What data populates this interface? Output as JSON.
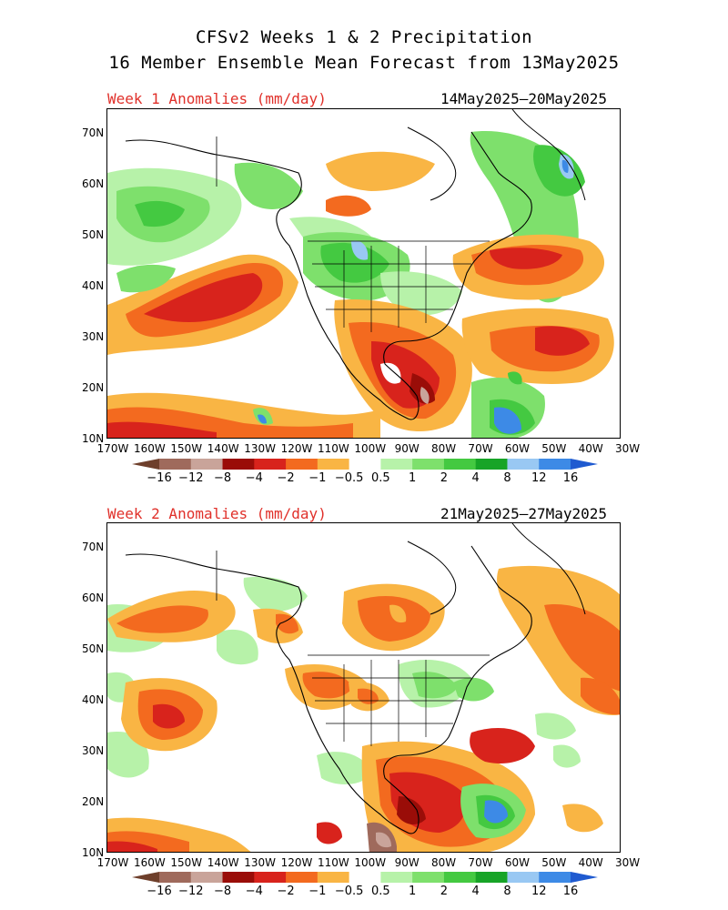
{
  "title": {
    "line1": "CFSv2 Weeks 1 & 2 Precipitation",
    "line2": "16 Member Ensemble Mean Forecast from 13May2025"
  },
  "panels": [
    {
      "label": "Week 1 Anomalies (mm/day)",
      "dates": "14May2025—20May2025"
    },
    {
      "label": "Week 2 Anomalies (mm/day)",
      "dates": "21May2025—27May2025"
    }
  ],
  "lat_ticks": [
    "70N",
    "60N",
    "50N",
    "40N",
    "30N",
    "20N",
    "10N"
  ],
  "lon_ticks": [
    "170W",
    "160W",
    "150W",
    "140W",
    "130W",
    "120W",
    "110W",
    "100W",
    "90W",
    "80W",
    "70W",
    "60W",
    "50W",
    "40W",
    "30W"
  ],
  "colorbar": {
    "labels": [
      "−16",
      "−12",
      "−8",
      "−4",
      "−2",
      "−1",
      "−0.5",
      "0.5",
      "1",
      "2",
      "4",
      "8",
      "12",
      "16"
    ],
    "colors": [
      "#6e3f2b",
      "#9f6a5c",
      "#c9a49a",
      "#9a0d08",
      "#d8231c",
      "#f36a1f",
      "#f9b544",
      "#ffffff",
      "#b7f2a9",
      "#7ee06c",
      "#44c941",
      "#17a427",
      "#99c8f3",
      "#3d8ae6",
      "#1f5ad0"
    ]
  },
  "colors": {
    "label_red": "#e0302a"
  }
}
